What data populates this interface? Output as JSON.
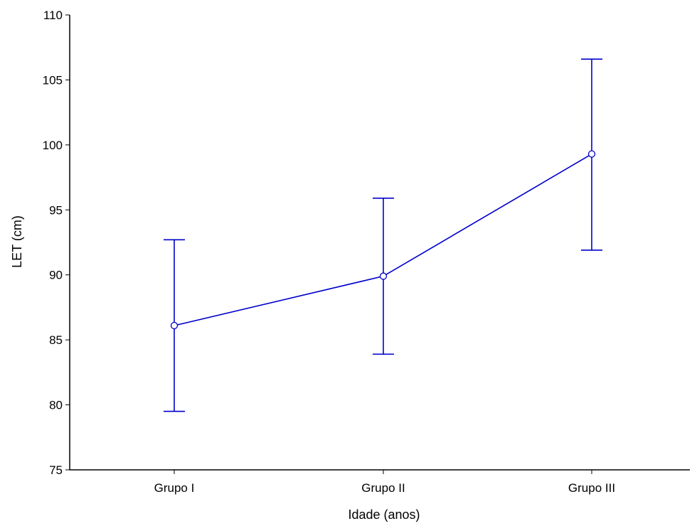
{
  "chart_data": {
    "type": "line",
    "xlabel": "Idade (anos)",
    "ylabel": "LET (cm)",
    "categories": [
      "Grupo I",
      "Grupo II",
      "Grupo III"
    ],
    "series": [
      {
        "values": [
          86.1,
          89.9,
          99.3
        ],
        "error_low": [
          79.5,
          83.9,
          91.9
        ],
        "error_high": [
          92.7,
          95.9,
          106.6
        ]
      }
    ],
    "ylim": [
      75,
      110
    ],
    "yticks": [
      75,
      80,
      85,
      90,
      95,
      100,
      105,
      110
    ],
    "grid": false,
    "colors": {
      "series": "#0000cc",
      "marker_fill": "#ffffff",
      "axis": "#000000"
    }
  }
}
